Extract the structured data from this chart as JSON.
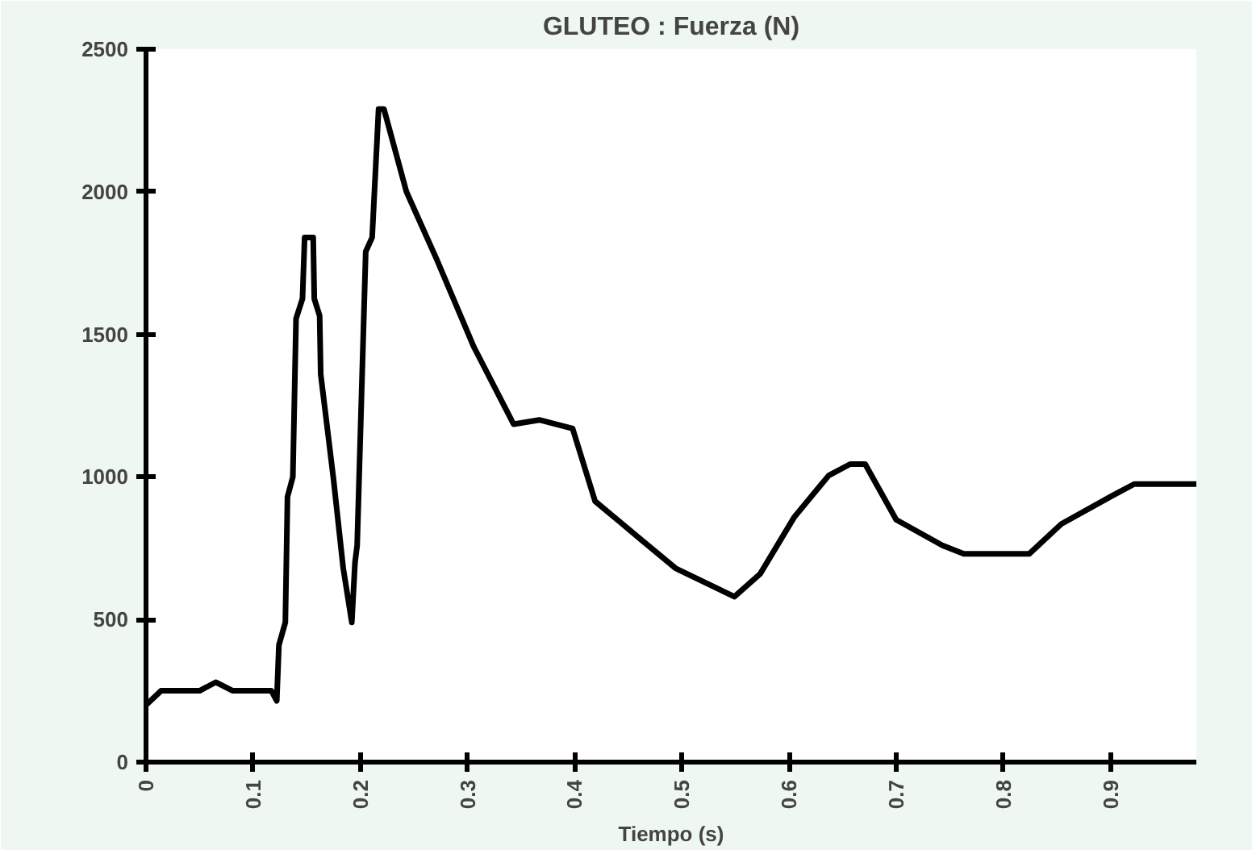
{
  "chart_data": {
    "type": "line",
    "title": "GLUTEO : Fuerza (N)",
    "xlabel": "Tiempo (s)",
    "xlim": [
      0,
      0.98
    ],
    "ylim": [
      0,
      2500
    ],
    "xticks": [
      0,
      0.1,
      0.2,
      0.3,
      0.4,
      0.5,
      0.6,
      0.7,
      0.8,
      0.9
    ],
    "yticks": [
      0,
      500,
      1000,
      1500,
      2000,
      2500
    ],
    "grid": false,
    "line_style": "solid",
    "series": [
      {
        "color": "#000000",
        "x": [
          0,
          0.014,
          0.05,
          0.065,
          0.081,
          0.117,
          0.122,
          0.124,
          0.13,
          0.132,
          0.137,
          0.14,
          0.146,
          0.148,
          0.156,
          0.157,
          0.162,
          0.163,
          0.17,
          0.175,
          0.184,
          0.192,
          0.195,
          0.197,
          0.205,
          0.211,
          0.217,
          0.222,
          0.243,
          0.271,
          0.306,
          0.343,
          0.367,
          0.398,
          0.419,
          0.462,
          0.494,
          0.549,
          0.573,
          0.605,
          0.637,
          0.657,
          0.671,
          0.7,
          0.743,
          0.763,
          0.824,
          0.854,
          0.902,
          0.922,
          0.98
        ],
        "values": [
          200,
          250,
          250,
          280,
          250,
          250,
          215,
          410,
          490,
          930,
          1000,
          1555,
          1625,
          1840,
          1840,
          1625,
          1565,
          1360,
          1145,
          990,
          680,
          490,
          700,
          760,
          1790,
          1840,
          2290,
          2290,
          2000,
          1765,
          1455,
          1185,
          1200,
          1170,
          915,
          780,
          680,
          580,
          660,
          860,
          1005,
          1045,
          1045,
          850,
          760,
          730,
          730,
          835,
          935,
          975,
          975
        ]
      }
    ]
  }
}
